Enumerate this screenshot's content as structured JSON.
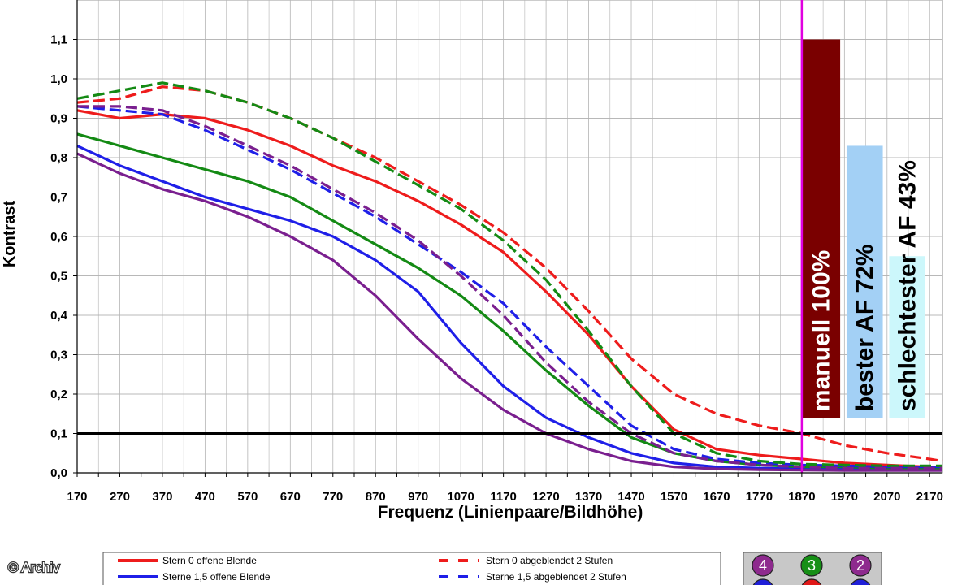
{
  "chart_data": {
    "type": "line",
    "title": "",
    "xlabel": "Frequenz (Linienpaare/Bildhöhe)",
    "ylabel": "Kontrast",
    "xlim": [
      170,
      2200
    ],
    "ylim": [
      0,
      1.2
    ],
    "x_ticks": [
      "170",
      "270",
      "370",
      "470",
      "570",
      "670",
      "770",
      "870",
      "970",
      "1070",
      "1170",
      "1270",
      "1370",
      "1470",
      "1570",
      "1670",
      "1770",
      "1870",
      "1970",
      "2070",
      "2170"
    ],
    "y_ticks": [
      "0,0",
      "0,1",
      "0,2",
      "0,3",
      "0,4",
      "0,5",
      "0,6",
      "0,7",
      "0,8",
      "0,9",
      "1,0",
      "1,1"
    ],
    "grid": true,
    "threshold": {
      "y": 0.1,
      "color": "#000000"
    },
    "marker_line": {
      "x": 1870,
      "color": "#e000e0"
    },
    "series": [
      {
        "name": "Stern 0 offene Blende",
        "color": "#ee1c1c",
        "dash": false,
        "x": [
          170,
          270,
          370,
          470,
          570,
          670,
          770,
          870,
          970,
          1070,
          1170,
          1270,
          1370,
          1470,
          1570,
          1670,
          1770,
          1870,
          1970,
          2070,
          2170,
          2200
        ],
        "values": [
          0.92,
          0.9,
          0.91,
          0.9,
          0.87,
          0.83,
          0.78,
          0.74,
          0.69,
          0.63,
          0.56,
          0.46,
          0.35,
          0.22,
          0.11,
          0.06,
          0.045,
          0.035,
          0.025,
          0.02,
          0.015,
          0.015
        ]
      },
      {
        "name": "Sterne 1,5 offene Blende",
        "color": "#1f1fe8",
        "dash": false,
        "x": [
          170,
          270,
          370,
          470,
          570,
          670,
          770,
          870,
          970,
          1070,
          1170,
          1270,
          1370,
          1470,
          1570,
          1670,
          1770,
          1870,
          1970,
          2070,
          2170,
          2200
        ],
        "values": [
          0.83,
          0.78,
          0.74,
          0.7,
          0.67,
          0.64,
          0.6,
          0.54,
          0.46,
          0.33,
          0.22,
          0.14,
          0.09,
          0.05,
          0.025,
          0.015,
          0.012,
          0.01,
          0.01,
          0.01,
          0.01,
          0.01
        ]
      },
      {
        "name": "",
        "color": "#148a14",
        "dash": false,
        "x": [
          170,
          270,
          370,
          470,
          570,
          670,
          770,
          870,
          970,
          1070,
          1170,
          1270,
          1370,
          1470,
          1570,
          1670,
          1770,
          1870,
          1970,
          2070,
          2170,
          2200
        ],
        "values": [
          0.86,
          0.83,
          0.8,
          0.77,
          0.74,
          0.7,
          0.64,
          0.58,
          0.52,
          0.45,
          0.36,
          0.26,
          0.17,
          0.09,
          0.05,
          0.03,
          0.02,
          0.015,
          0.015,
          0.012,
          0.012,
          0.012
        ]
      },
      {
        "name": "",
        "color": "#7a1f8f",
        "dash": false,
        "x": [
          170,
          270,
          370,
          470,
          570,
          670,
          770,
          870,
          970,
          1070,
          1170,
          1270,
          1370,
          1470,
          1570,
          1670,
          1770,
          1870,
          1970,
          2070,
          2170,
          2200
        ],
        "values": [
          0.81,
          0.76,
          0.72,
          0.69,
          0.65,
          0.6,
          0.54,
          0.45,
          0.34,
          0.24,
          0.16,
          0.1,
          0.06,
          0.03,
          0.015,
          0.01,
          0.008,
          0.007,
          0.006,
          0.006,
          0.006,
          0.006
        ]
      },
      {
        "name": "Stern 0 abgeblendet 2 Stufen",
        "color": "#ee1c1c",
        "dash": true,
        "x": [
          170,
          270,
          370,
          470,
          570,
          670,
          770,
          870,
          970,
          1070,
          1170,
          1270,
          1370,
          1470,
          1570,
          1670,
          1770,
          1870,
          1970,
          2070,
          2170,
          2200
        ],
        "values": [
          0.94,
          0.95,
          0.98,
          0.97,
          0.94,
          0.9,
          0.85,
          0.8,
          0.74,
          0.68,
          0.61,
          0.52,
          0.41,
          0.29,
          0.2,
          0.15,
          0.12,
          0.1,
          0.07,
          0.05,
          0.035,
          0.03
        ]
      },
      {
        "name": "Sterne 1,5 abgeblendet 2 Stufen",
        "color": "#1f1fe8",
        "dash": true,
        "x": [
          170,
          270,
          370,
          470,
          570,
          670,
          770,
          870,
          970,
          1070,
          1170,
          1270,
          1370,
          1470,
          1570,
          1670,
          1770,
          1870,
          1970,
          2070,
          2170,
          2200
        ],
        "values": [
          0.93,
          0.92,
          0.91,
          0.87,
          0.82,
          0.77,
          0.71,
          0.65,
          0.58,
          0.51,
          0.43,
          0.32,
          0.22,
          0.12,
          0.06,
          0.035,
          0.025,
          0.02,
          0.018,
          0.015,
          0.015,
          0.015
        ]
      },
      {
        "name": "",
        "color": "#148a14",
        "dash": true,
        "x": [
          170,
          270,
          370,
          470,
          570,
          670,
          770,
          870,
          970,
          1070,
          1170,
          1270,
          1370,
          1470,
          1570,
          1670,
          1770,
          1870,
          1970,
          2070,
          2170,
          2200
        ],
        "values": [
          0.95,
          0.97,
          0.99,
          0.97,
          0.94,
          0.9,
          0.85,
          0.79,
          0.73,
          0.67,
          0.59,
          0.49,
          0.36,
          0.22,
          0.1,
          0.05,
          0.03,
          0.022,
          0.02,
          0.018,
          0.018,
          0.018
        ]
      },
      {
        "name": "",
        "color": "#7a1f8f",
        "dash": true,
        "x": [
          170,
          270,
          370,
          470,
          570,
          670,
          770,
          870,
          970,
          1070,
          1170,
          1270,
          1370,
          1470,
          1570,
          1670,
          1770,
          1870,
          1970,
          2070,
          2170,
          2200
        ],
        "values": [
          0.93,
          0.93,
          0.92,
          0.88,
          0.83,
          0.78,
          0.72,
          0.66,
          0.59,
          0.5,
          0.4,
          0.28,
          0.18,
          0.1,
          0.05,
          0.03,
          0.02,
          0.015,
          0.012,
          0.012,
          0.012,
          0.012
        ]
      }
    ],
    "bars": [
      {
        "label": "manuell 100%",
        "x": [
          1870,
          1960
        ],
        "y": [
          0.14,
          1.1
        ],
        "color": "#7a0000",
        "text_color": "#ffffff"
      },
      {
        "label": "bester AF 72%",
        "x": [
          1975,
          2060
        ],
        "y": [
          0.14,
          0.83
        ],
        "color": "#a3d0f5",
        "text_color": "#000000"
      },
      {
        "label": "schlechtester AF 43%",
        "x": [
          2075,
          2160
        ],
        "y": [
          0.14,
          0.55
        ],
        "color": "#ccf7fb",
        "text_color": "#000000"
      }
    ]
  },
  "legend": {
    "entries": [
      {
        "label": "Stern 0 offene Blende",
        "color": "#ee1c1c",
        "dash": false
      },
      {
        "label": "Sterne 1,5 offene Blende",
        "color": "#1f1fe8",
        "dash": false
      },
      {
        "label": "Stern 0 abgeblendet 2 Stufen",
        "color": "#ee1c1c",
        "dash": true
      },
      {
        "label": "Sterne 1,5 abgeblendet 2 Stufen",
        "color": "#1f1fe8",
        "dash": true
      }
    ]
  },
  "badges": [
    {
      "text": "4",
      "color": "#8e2a8e"
    },
    {
      "text": "3",
      "color": "#168f16"
    },
    {
      "text": "2",
      "color": "#8e2a8e"
    },
    {
      "text": "",
      "color": "#1f1fd8"
    },
    {
      "text": "",
      "color": "#e01818"
    },
    {
      "text": "",
      "color": "#1f1fd8"
    }
  ],
  "credit": "© Archiv"
}
